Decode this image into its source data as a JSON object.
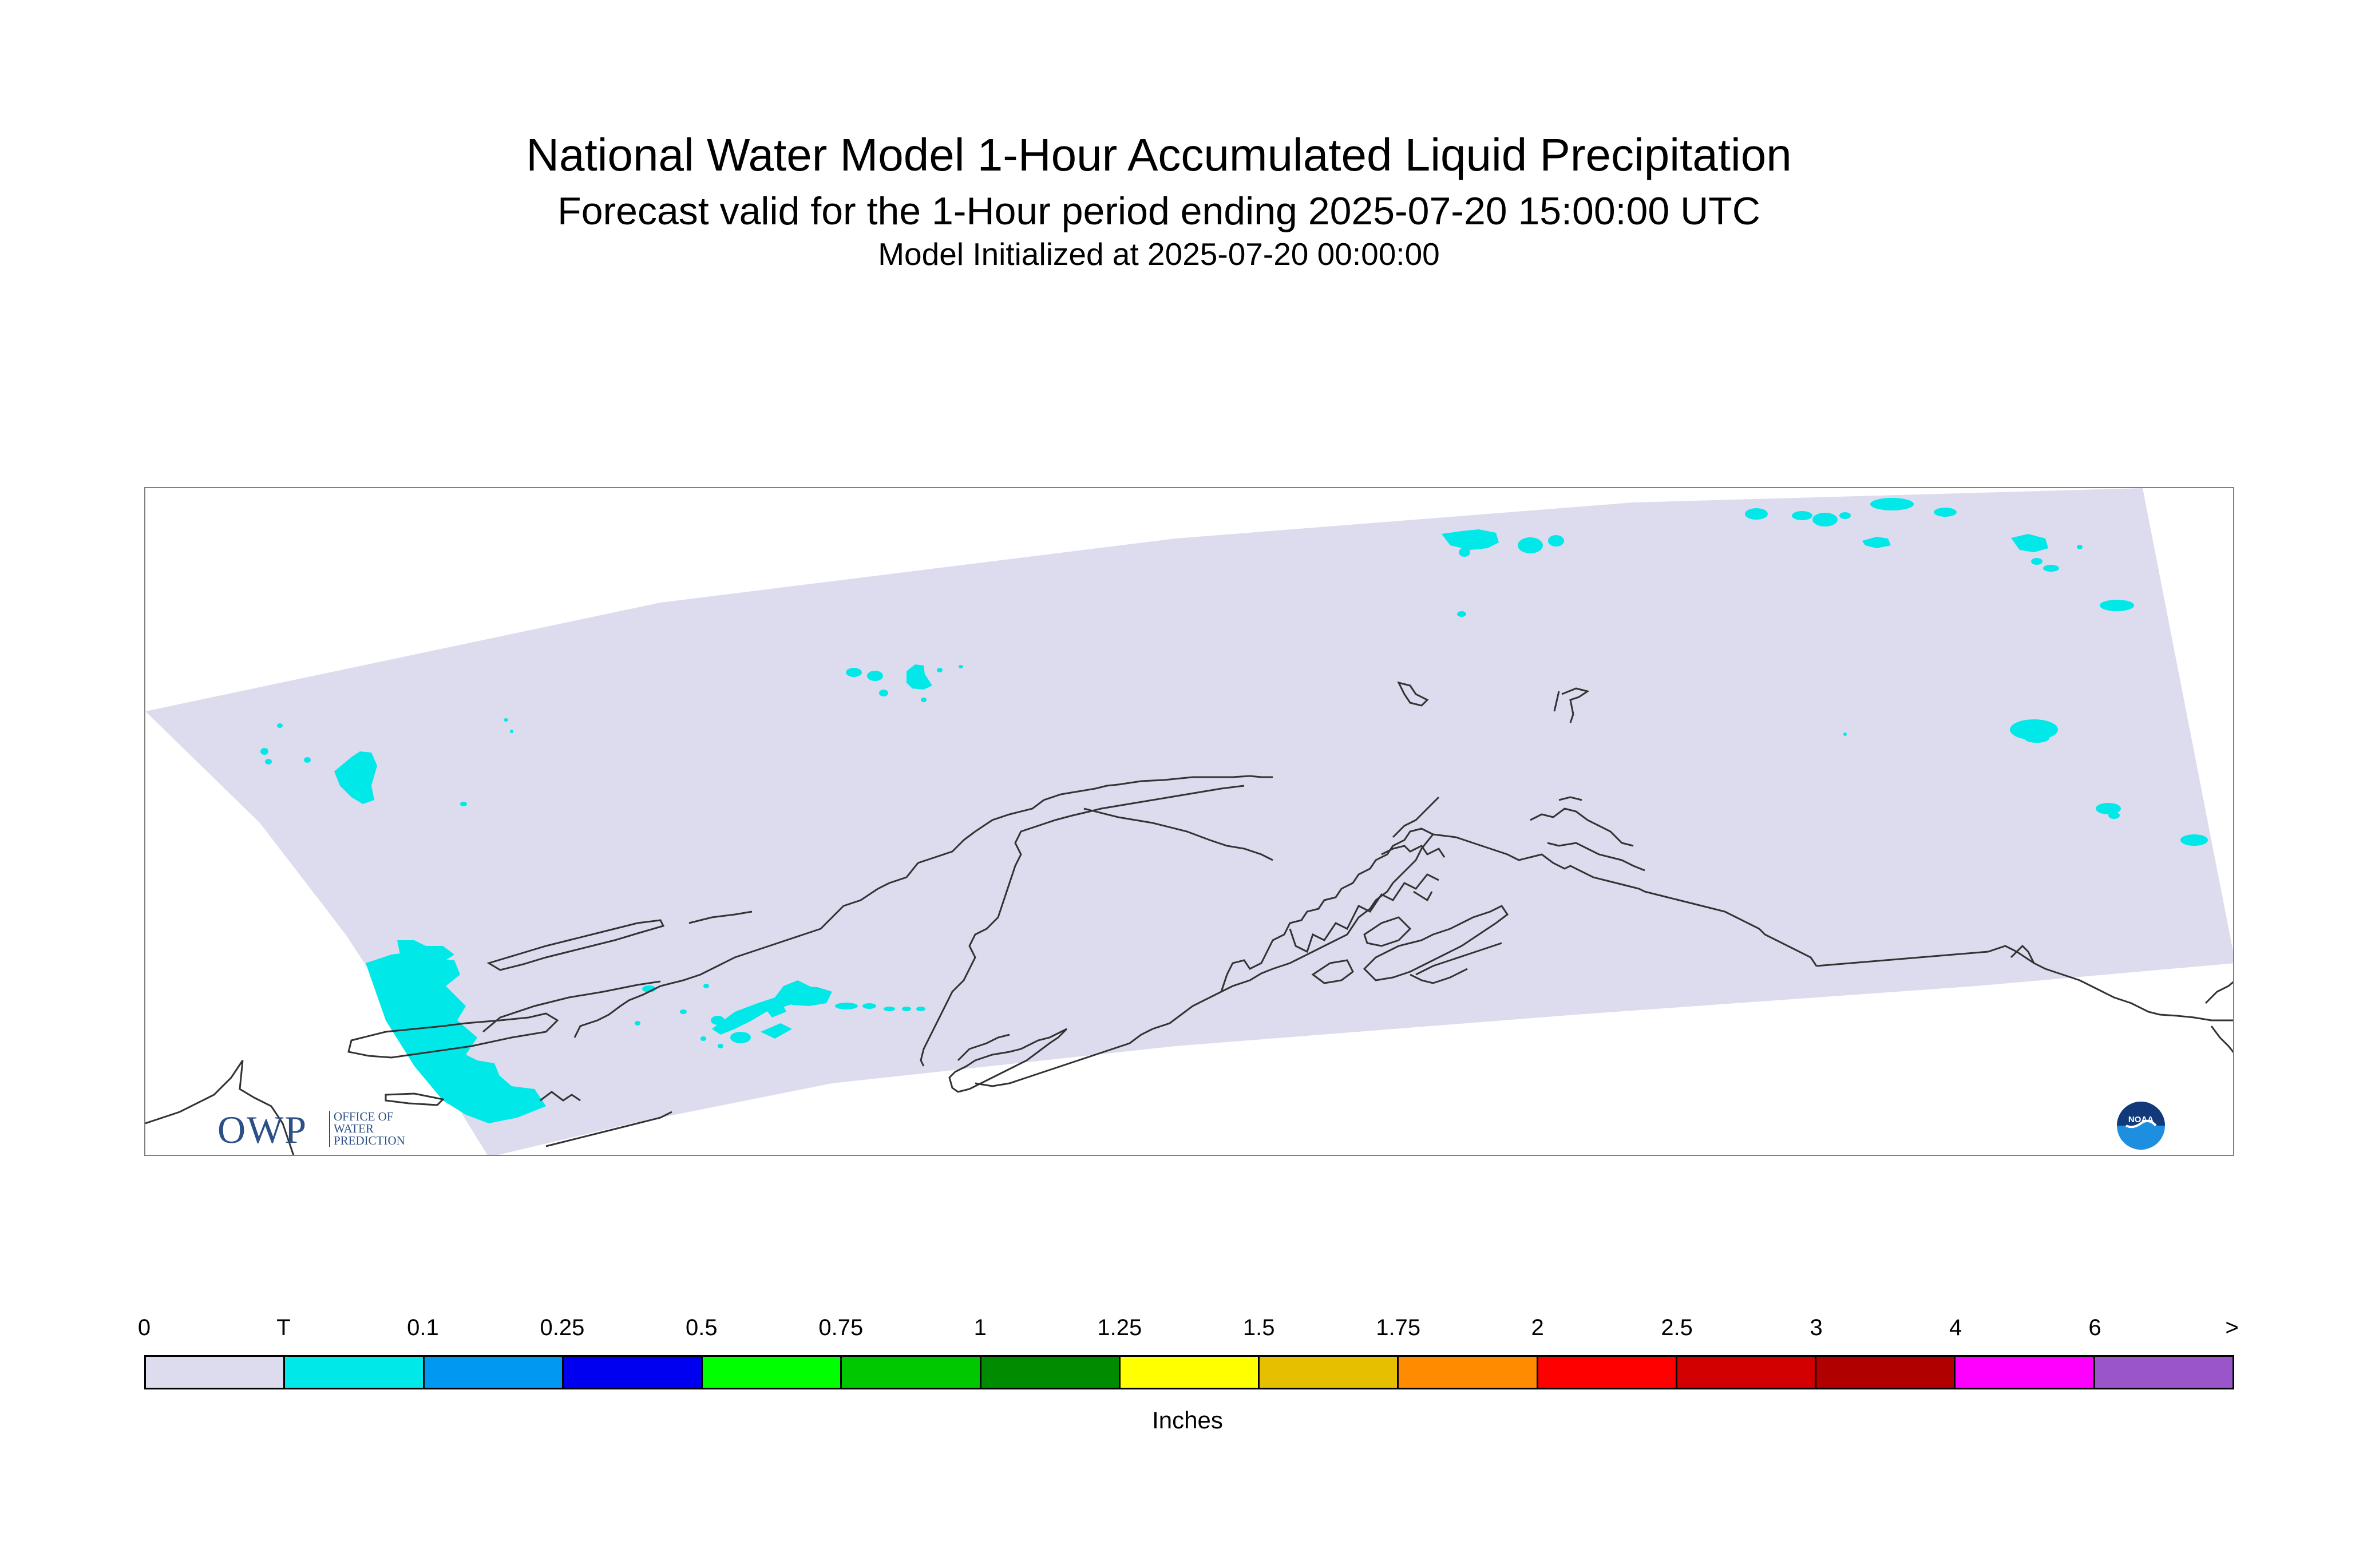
{
  "header": {
    "title": "National Water Model 1-Hour Accumulated Liquid Precipitation",
    "subtitle": "Forecast valid for the 1-Hour period ending 2025-07-20 15:00:00 UTC",
    "initialized": "Model Initialized at 2025-07-20 00:00:00"
  },
  "map": {
    "domain_color": "#dcdcee",
    "precip_color": "#00e8e8",
    "coast_color": "#333333"
  },
  "owp_logo": {
    "letters": "OWP",
    "line1": "OFFICE OF",
    "line2": "WATER",
    "line3": "PREDICTION",
    "color": "#2c4f86"
  },
  "noaa_logo": {
    "text": "NOAA"
  },
  "legend": {
    "ticks": [
      "0",
      "T",
      "0.1",
      "0.25",
      "0.5",
      "0.75",
      "1",
      "1.25",
      "1.5",
      "1.75",
      "2",
      "2.5",
      "3",
      "4",
      "6",
      ">"
    ],
    "colors": [
      "#dcdcee",
      "#00e8e8",
      "#0098f0",
      "#0000f0",
      "#00ff00",
      "#00c800",
      "#008c00",
      "#ffff00",
      "#e6c000",
      "#ff8c00",
      "#ff0000",
      "#d20000",
      "#b00000",
      "#ff00ff",
      "#9955c9"
    ],
    "units": "Inches"
  }
}
